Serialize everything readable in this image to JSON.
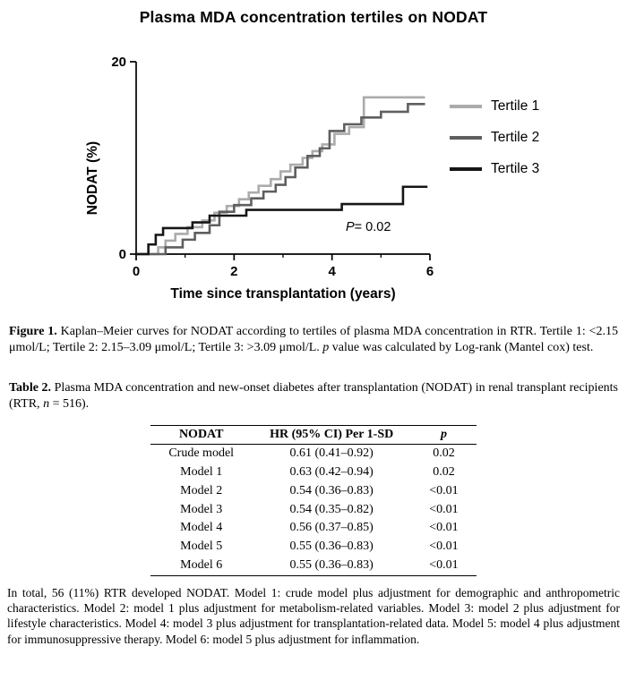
{
  "chart_data": {
    "type": "line",
    "subtype": "kaplan-meier-step",
    "title": "Plasma MDA concentration tertiles on NODAT",
    "xlabel": "Time since transplantation (years)",
    "ylabel": "NODAT (%)",
    "xlim": [
      0,
      6
    ],
    "ylim": [
      0,
      20
    ],
    "xticks": [
      0,
      2,
      4,
      6
    ],
    "xminor": [
      1,
      3,
      5
    ],
    "yticks": [
      0,
      20
    ],
    "grid": false,
    "legend_position": "right",
    "p_annotation": {
      "label": "P",
      "text": "= 0.02"
    },
    "series": [
      {
        "name": "Tertile 1",
        "color": "#ababab",
        "points": [
          [
            0,
            0
          ],
          [
            0.45,
            0
          ],
          [
            0.45,
            0.7
          ],
          [
            0.6,
            0.7
          ],
          [
            0.6,
            1.4
          ],
          [
            0.8,
            1.4
          ],
          [
            0.8,
            2.1
          ],
          [
            1.05,
            2.1
          ],
          [
            1.05,
            2.8
          ],
          [
            1.35,
            2.8
          ],
          [
            1.35,
            3.5
          ],
          [
            1.6,
            3.5
          ],
          [
            1.6,
            4.3
          ],
          [
            1.85,
            4.3
          ],
          [
            1.85,
            5.0
          ],
          [
            2.1,
            5.0
          ],
          [
            2.1,
            5.7
          ],
          [
            2.3,
            5.7
          ],
          [
            2.3,
            6.4
          ],
          [
            2.5,
            6.4
          ],
          [
            2.5,
            7.1
          ],
          [
            2.75,
            7.1
          ],
          [
            2.75,
            7.8
          ],
          [
            2.95,
            7.8
          ],
          [
            2.95,
            8.6
          ],
          [
            3.15,
            8.6
          ],
          [
            3.15,
            9.3
          ],
          [
            3.4,
            9.3
          ],
          [
            3.4,
            10.0
          ],
          [
            3.6,
            10.0
          ],
          [
            3.6,
            10.7
          ],
          [
            3.8,
            10.7
          ],
          [
            3.8,
            11.4
          ],
          [
            4.05,
            11.4
          ],
          [
            4.05,
            12.5
          ],
          [
            4.35,
            12.5
          ],
          [
            4.35,
            13.2
          ],
          [
            4.65,
            13.2
          ],
          [
            4.65,
            16.3
          ],
          [
            5.9,
            16.3
          ]
        ]
      },
      {
        "name": "Tertile 2",
        "color": "#5f5f5f",
        "points": [
          [
            0,
            0
          ],
          [
            0.6,
            0
          ],
          [
            0.6,
            0.7
          ],
          [
            0.95,
            0.7
          ],
          [
            0.95,
            1.5
          ],
          [
            1.2,
            1.5
          ],
          [
            1.2,
            2.2
          ],
          [
            1.5,
            2.2
          ],
          [
            1.5,
            3.0
          ],
          [
            1.7,
            3.0
          ],
          [
            1.7,
            4.4
          ],
          [
            2.0,
            4.4
          ],
          [
            2.0,
            5.1
          ],
          [
            2.35,
            5.1
          ],
          [
            2.35,
            5.8
          ],
          [
            2.6,
            5.8
          ],
          [
            2.6,
            6.5
          ],
          [
            2.85,
            6.5
          ],
          [
            2.85,
            7.2
          ],
          [
            3.05,
            7.2
          ],
          [
            3.05,
            8.0
          ],
          [
            3.25,
            8.0
          ],
          [
            3.25,
            9.0
          ],
          [
            3.5,
            9.0
          ],
          [
            3.5,
            10.2
          ],
          [
            3.75,
            10.2
          ],
          [
            3.75,
            11.0
          ],
          [
            3.95,
            11.0
          ],
          [
            3.95,
            12.8
          ],
          [
            4.25,
            12.8
          ],
          [
            4.25,
            13.5
          ],
          [
            4.6,
            13.5
          ],
          [
            4.6,
            14.2
          ],
          [
            5.0,
            14.2
          ],
          [
            5.0,
            14.8
          ],
          [
            5.55,
            14.8
          ],
          [
            5.55,
            15.6
          ],
          [
            5.9,
            15.6
          ]
        ]
      },
      {
        "name": "Tertile 3",
        "color": "#161616",
        "points": [
          [
            0,
            0
          ],
          [
            0.25,
            0
          ],
          [
            0.25,
            1.0
          ],
          [
            0.4,
            1.0
          ],
          [
            0.4,
            2.0
          ],
          [
            0.55,
            2.0
          ],
          [
            0.55,
            2.7
          ],
          [
            1.15,
            2.7
          ],
          [
            1.15,
            3.3
          ],
          [
            1.5,
            3.3
          ],
          [
            1.5,
            4.0
          ],
          [
            2.25,
            4.0
          ],
          [
            2.25,
            4.6
          ],
          [
            4.2,
            4.6
          ],
          [
            4.2,
            5.2
          ],
          [
            5.45,
            5.2
          ],
          [
            5.45,
            7.0
          ],
          [
            5.95,
            7.0
          ]
        ]
      }
    ]
  },
  "figure_caption": {
    "label": "Figure 1.",
    "text1": " Kaplan–Meier curves for NODAT according to tertiles of plasma MDA concentration in RTR. Tertile 1: <2.15 μmol/L; Tertile 2: 2.15–3.09 μmol/L; Tertile 3: >3.09 μmol/L. ",
    "italic": "p",
    "text2": " value was calculated by Log-rank (Mantel cox) test."
  },
  "table_caption": {
    "label": "Table 2.",
    "text1": " Plasma MDA concentration and new-onset diabetes after transplantation (NODAT) in renal transplant recipients (RTR, ",
    "italic": "n",
    "text2": " = 516)."
  },
  "table": {
    "headers": [
      {
        "label": "NODAT",
        "italic": false
      },
      {
        "label": "HR (95% CI) Per 1-SD",
        "italic": false
      },
      {
        "label": "p",
        "italic": true
      }
    ],
    "rows": [
      [
        "Crude model",
        "0.61 (0.41–0.92)",
        "0.02"
      ],
      [
        "Model 1",
        "0.63 (0.42–0.94)",
        "0.02"
      ],
      [
        "Model 2",
        "0.54 (0.36–0.83)",
        "<0.01"
      ],
      [
        "Model 3",
        "0.54 (0.35–0.82)",
        "<0.01"
      ],
      [
        "Model 4",
        "0.56 (0.37–0.85)",
        "<0.01"
      ],
      [
        "Model 5",
        "0.55 (0.36–0.83)",
        "<0.01"
      ],
      [
        "Model 6",
        "0.55 (0.36–0.83)",
        "<0.01"
      ]
    ]
  },
  "footnote": "In total, 56 (11%) RTR developed NODAT. Model 1: crude model plus adjustment for demographic and anthropometric characteristics. Model 2: model 1 plus adjustment for metabolism-related variables. Model 3: model 2 plus adjustment for lifestyle characteristics. Model 4: model 3 plus adjustment for transplantation-related data. Model 5: model 4 plus adjustment for immunosuppressive therapy. Model 6: model 5 plus adjustment for inflammation."
}
